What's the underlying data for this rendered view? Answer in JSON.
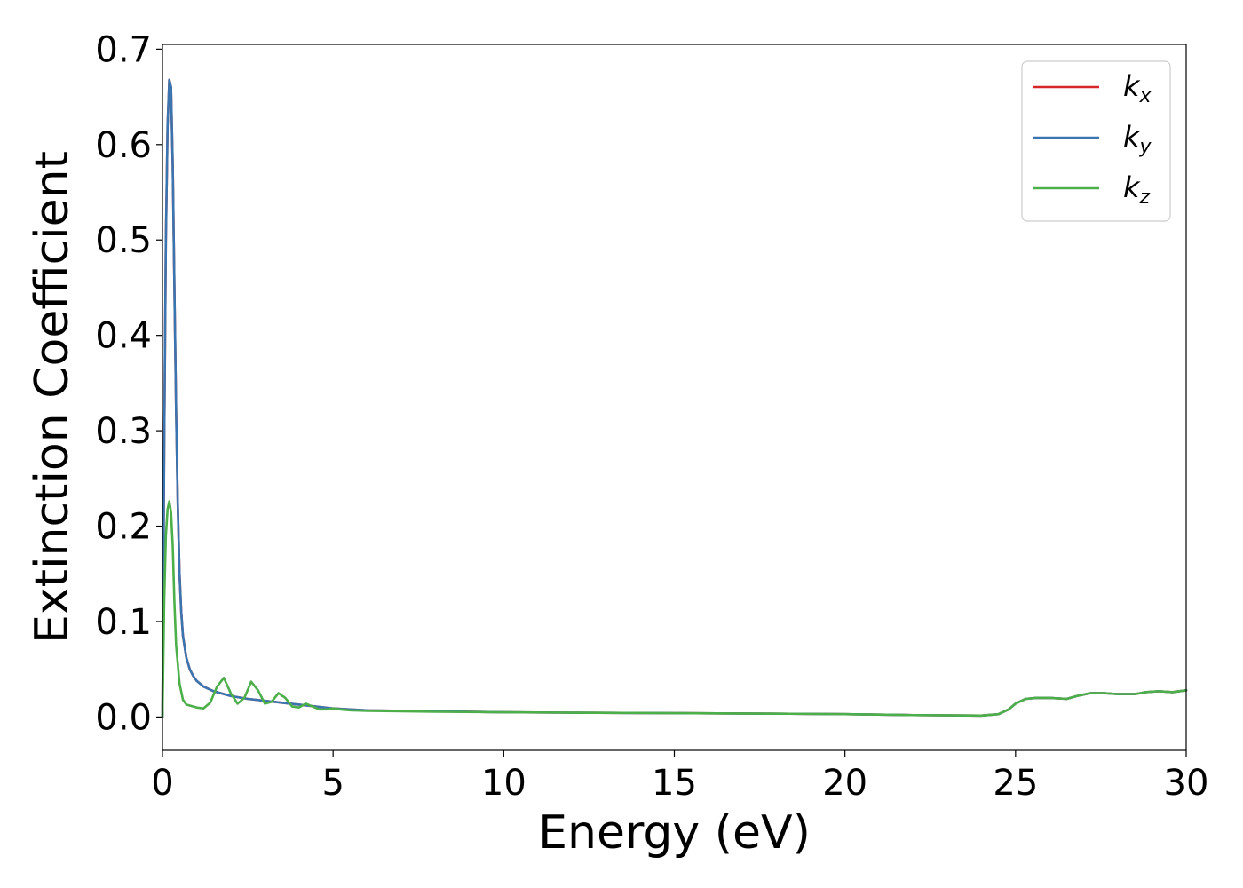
{
  "chart_data": {
    "type": "line",
    "title": "",
    "xlabel": "Energy (eV)",
    "ylabel": "Extinction Coefficient",
    "xlim": [
      0,
      30
    ],
    "ylim": [
      -0.035,
      0.705
    ],
    "xticks": [
      0,
      5,
      10,
      15,
      20,
      25,
      30
    ],
    "xtick_labels": [
      "0",
      "5",
      "10",
      "15",
      "20",
      "25",
      "30"
    ],
    "yticks": [
      0.0,
      0.1,
      0.2,
      0.3,
      0.4,
      0.5,
      0.6,
      0.7
    ],
    "ytick_labels": [
      "0.0",
      "0.1",
      "0.2",
      "0.3",
      "0.4",
      "0.5",
      "0.6",
      "0.7"
    ],
    "grid": false,
    "legend_position": "top-right",
    "series": [
      {
        "name": "k_x",
        "legend_base": "k",
        "legend_sub": "x",
        "color": "#d62728",
        "x": [
          0,
          0.05,
          0.1,
          0.15,
          0.2,
          0.25,
          0.3,
          0.35,
          0.4,
          0.45,
          0.5,
          0.55,
          0.6,
          0.7,
          0.8,
          0.9,
          1.0,
          1.2,
          1.5,
          2.0,
          2.5,
          3.0,
          3.5,
          4.0,
          5.0,
          6.0,
          8.0,
          10.0,
          12.0,
          15.0,
          18.0,
          20.0,
          22.0,
          24.0,
          24.5,
          24.8,
          25.0,
          25.3,
          25.6,
          26.0,
          26.5,
          26.8,
          27.2,
          27.6,
          28.0,
          28.5,
          28.8,
          29.2,
          29.6,
          30.0
        ],
        "y": [
          0.0,
          0.28,
          0.5,
          0.62,
          0.668,
          0.66,
          0.58,
          0.45,
          0.32,
          0.22,
          0.15,
          0.11,
          0.085,
          0.062,
          0.05,
          0.043,
          0.038,
          0.032,
          0.027,
          0.022,
          0.019,
          0.017,
          0.015,
          0.013,
          0.009,
          0.007,
          0.006,
          0.005,
          0.0045,
          0.004,
          0.0035,
          0.003,
          0.002,
          0.0015,
          0.003,
          0.008,
          0.014,
          0.019,
          0.02,
          0.02,
          0.019,
          0.022,
          0.025,
          0.025,
          0.024,
          0.024,
          0.026,
          0.027,
          0.026,
          0.028
        ]
      },
      {
        "name": "k_y",
        "legend_base": "k",
        "legend_sub": "y",
        "color": "#3a75b0",
        "x": [
          0,
          0.05,
          0.1,
          0.15,
          0.2,
          0.25,
          0.3,
          0.35,
          0.4,
          0.45,
          0.5,
          0.55,
          0.6,
          0.7,
          0.8,
          0.9,
          1.0,
          1.2,
          1.5,
          2.0,
          2.5,
          3.0,
          3.5,
          4.0,
          5.0,
          6.0,
          8.0,
          10.0,
          12.0,
          15.0,
          18.0,
          20.0,
          22.0,
          24.0,
          24.5,
          24.8,
          25.0,
          25.3,
          25.6,
          26.0,
          26.5,
          26.8,
          27.2,
          27.6,
          28.0,
          28.5,
          28.8,
          29.2,
          29.6,
          30.0
        ],
        "y": [
          0.0,
          0.28,
          0.5,
          0.62,
          0.668,
          0.66,
          0.58,
          0.45,
          0.32,
          0.22,
          0.15,
          0.11,
          0.085,
          0.062,
          0.05,
          0.043,
          0.038,
          0.032,
          0.027,
          0.022,
          0.019,
          0.017,
          0.015,
          0.013,
          0.009,
          0.007,
          0.006,
          0.005,
          0.0045,
          0.004,
          0.0035,
          0.003,
          0.002,
          0.0015,
          0.003,
          0.008,
          0.014,
          0.019,
          0.02,
          0.02,
          0.019,
          0.022,
          0.025,
          0.025,
          0.024,
          0.024,
          0.026,
          0.027,
          0.026,
          0.028
        ]
      },
      {
        "name": "k_z",
        "legend_base": "k",
        "legend_sub": "z",
        "color": "#4daf4a",
        "x": [
          0,
          0.05,
          0.1,
          0.15,
          0.2,
          0.25,
          0.3,
          0.35,
          0.4,
          0.5,
          0.6,
          0.7,
          0.8,
          1.0,
          1.2,
          1.4,
          1.6,
          1.8,
          2.0,
          2.2,
          2.4,
          2.6,
          2.8,
          3.0,
          3.2,
          3.4,
          3.6,
          3.8,
          4.0,
          4.2,
          4.4,
          4.6,
          4.8,
          5.0,
          5.2,
          5.5,
          6.0,
          8.0,
          10.0,
          12.0,
          15.0,
          18.0,
          20.0,
          22.0,
          24.0,
          24.5,
          24.8,
          25.0,
          25.3,
          25.6,
          26.0,
          26.5,
          26.8,
          27.2,
          27.6,
          28.0,
          28.5,
          28.8,
          29.2,
          29.6,
          30.0
        ],
        "y": [
          0.0,
          0.12,
          0.19,
          0.218,
          0.226,
          0.215,
          0.18,
          0.12,
          0.075,
          0.035,
          0.018,
          0.013,
          0.012,
          0.01,
          0.009,
          0.015,
          0.032,
          0.041,
          0.025,
          0.014,
          0.02,
          0.037,
          0.028,
          0.014,
          0.016,
          0.025,
          0.02,
          0.011,
          0.01,
          0.014,
          0.011,
          0.008,
          0.008,
          0.009,
          0.008,
          0.007,
          0.0065,
          0.0055,
          0.005,
          0.0045,
          0.004,
          0.0035,
          0.003,
          0.002,
          0.0015,
          0.003,
          0.008,
          0.014,
          0.019,
          0.02,
          0.02,
          0.019,
          0.022,
          0.025,
          0.025,
          0.024,
          0.024,
          0.026,
          0.027,
          0.026,
          0.028
        ]
      }
    ]
  }
}
